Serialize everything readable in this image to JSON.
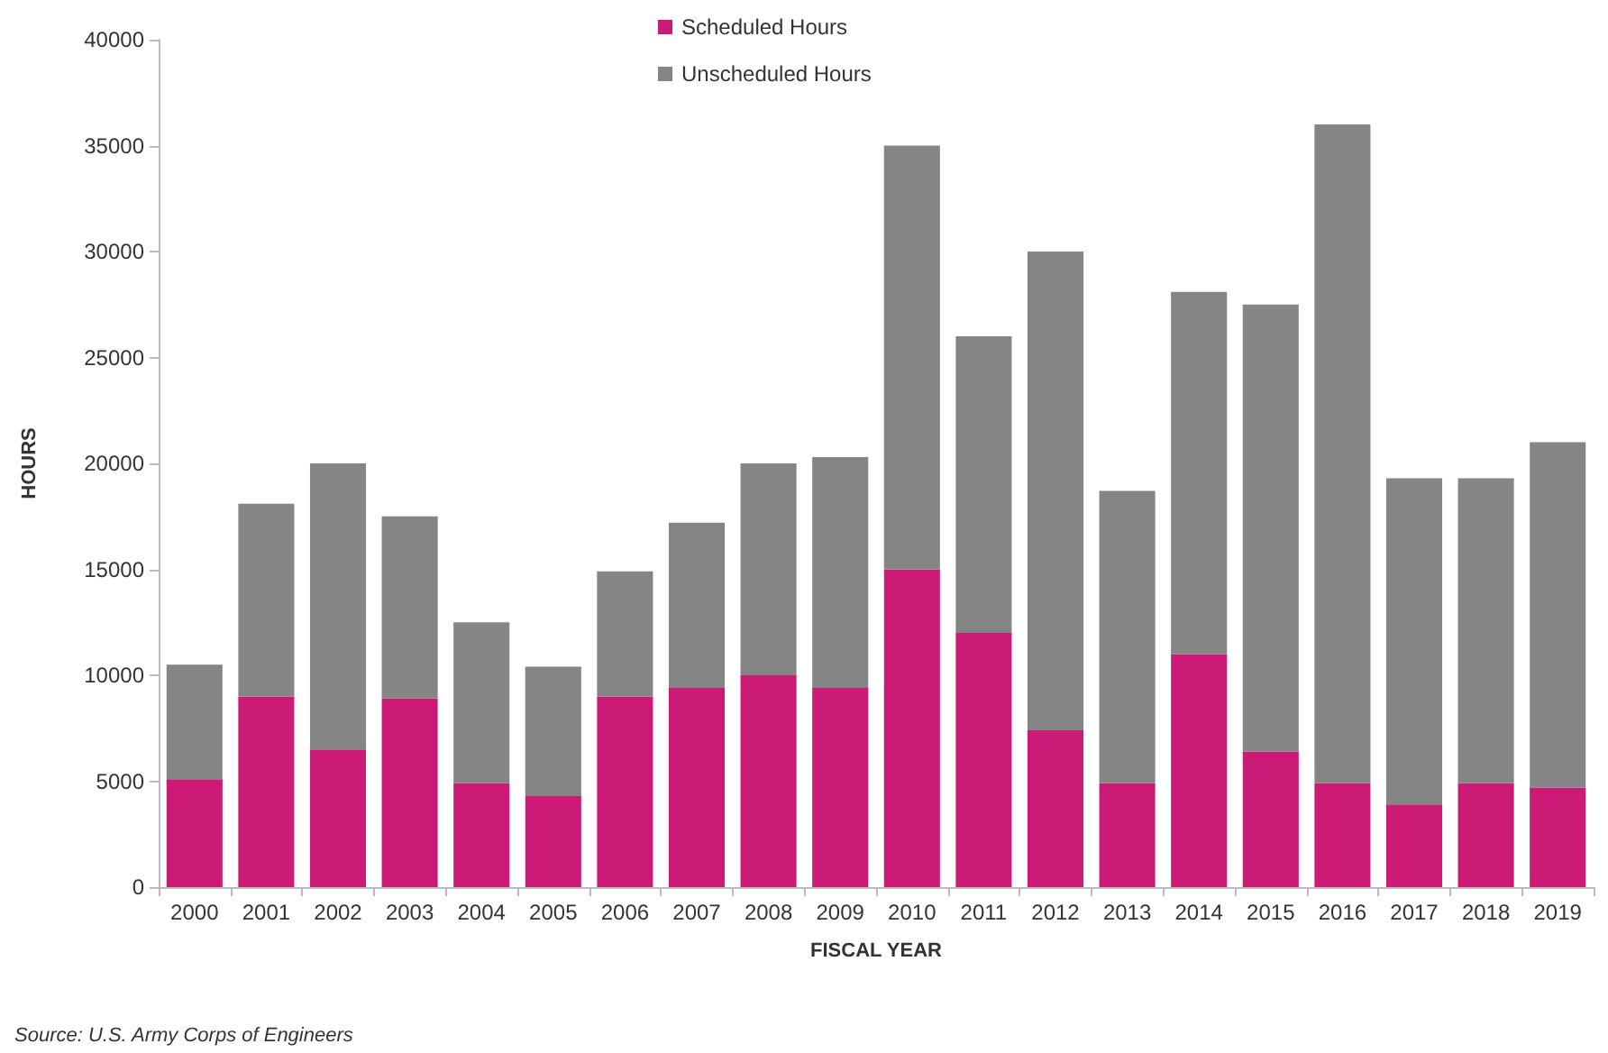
{
  "chart_data": {
    "type": "bar",
    "stacked": true,
    "xlabel": "FISCAL YEAR",
    "ylabel": "HOURS",
    "categories": [
      "2000",
      "2001",
      "2002",
      "2003",
      "2004",
      "2005",
      "2006",
      "2007",
      "2008",
      "2009",
      "2010",
      "2011",
      "2012",
      "2013",
      "2014",
      "2015",
      "2016",
      "2017",
      "2018",
      "2019"
    ],
    "series": [
      {
        "name": "Scheduled Hours",
        "color": "#cc1b77",
        "values": [
          5100,
          9000,
          6500,
          8900,
          4900,
          4300,
          9000,
          9400,
          10000,
          9400,
          15000,
          12000,
          7400,
          4900,
          11000,
          6400,
          4900,
          3900,
          4900,
          4700
        ]
      },
      {
        "name": "Unscheduled Hours",
        "color": "#858585",
        "values": [
          5400,
          9100,
          13500,
          8600,
          7600,
          6100,
          5900,
          7800,
          10000,
          10900,
          20000,
          14000,
          22600,
          13800,
          17100,
          21100,
          31100,
          15400,
          14400,
          16300
        ]
      }
    ],
    "ylim": [
      0,
      40000
    ],
    "yticks": [
      0,
      5000,
      10000,
      15000,
      20000,
      25000,
      30000,
      35000,
      40000
    ],
    "grid": false,
    "legend": "top",
    "annotations": [
      "Source: U.S. Army Corps of Engineers"
    ]
  }
}
